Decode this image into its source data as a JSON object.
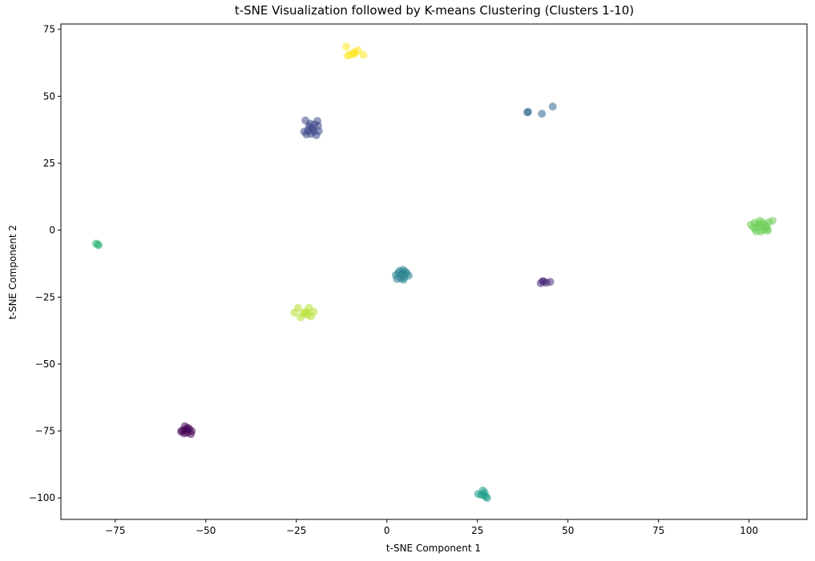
{
  "chart_data": {
    "type": "scatter",
    "title": "t-SNE Visualization followed by K-means Clustering (Clusters 1-10)",
    "xlabel": "t-SNE Component 1",
    "ylabel": "t-SNE Component 2",
    "xlim": [
      -90,
      116
    ],
    "ylim": [
      -108,
      77
    ],
    "xticks": [
      -75,
      -50,
      -25,
      0,
      25,
      50,
      75,
      100
    ],
    "yticks": [
      -100,
      -75,
      -50,
      -25,
      0,
      25,
      50,
      75
    ],
    "xtick_labels": [
      "−75",
      "−50",
      "−25",
      "0",
      "25",
      "50",
      "75",
      "100"
    ],
    "ytick_labels": [
      "−100",
      "−75",
      "−50",
      "−25",
      "0",
      "25",
      "50",
      "75"
    ],
    "grid": false,
    "marker_alpha": 0.55,
    "series": [
      {
        "color": "#440154",
        "points": [
          [
            -56.5,
            -74.8
          ],
          [
            -55.8,
            -73.2
          ],
          [
            -55.2,
            -75.6
          ],
          [
            -54.6,
            -74.2
          ],
          [
            -56.0,
            -75.9
          ],
          [
            -54.1,
            -76.1
          ],
          [
            -55.5,
            -74.5
          ],
          [
            -53.9,
            -75.0
          ],
          [
            -56.8,
            -75.2
          ],
          [
            -55.0,
            -73.8
          ]
        ]
      },
      {
        "color": "#482878",
        "points": [
          [
            42.5,
            -19.8
          ],
          [
            43.3,
            -19.2
          ],
          [
            44.0,
            -19.6
          ],
          [
            45.1,
            -19.3
          ],
          [
            43.0,
            -19.0
          ]
        ]
      },
      {
        "color": "#3e4989",
        "points": [
          [
            -22.5,
            41.0
          ],
          [
            -21.5,
            38.8
          ],
          [
            -20.5,
            37.6
          ],
          [
            -21.0,
            36.0
          ],
          [
            -22.2,
            35.8
          ],
          [
            -19.5,
            35.5
          ],
          [
            -18.8,
            37.0
          ],
          [
            -20.0,
            39.5
          ],
          [
            -19.2,
            40.8
          ],
          [
            -21.8,
            37.2
          ],
          [
            -20.8,
            38.2
          ],
          [
            -22.8,
            36.8
          ],
          [
            -19.0,
            39.0
          ],
          [
            -20.2,
            36.8
          ],
          [
            -21.2,
            39.8
          ]
        ]
      },
      {
        "color": "#31688e",
        "points": [
          [
            38.8,
            44.0
          ],
          [
            39.0,
            44.2
          ],
          [
            42.8,
            43.5
          ],
          [
            45.8,
            46.2
          ]
        ]
      },
      {
        "color": "#26828e",
        "points": [
          [
            2.5,
            -16.8
          ],
          [
            3.5,
            -15.2
          ],
          [
            4.5,
            -14.8
          ],
          [
            5.5,
            -16.0
          ],
          [
            6.0,
            -17.0
          ],
          [
            4.8,
            -17.5
          ],
          [
            3.8,
            -18.0
          ],
          [
            2.8,
            -18.2
          ],
          [
            4.2,
            -16.4
          ],
          [
            5.0,
            -15.5
          ],
          [
            3.2,
            -16.0
          ],
          [
            4.6,
            -18.5
          ]
        ]
      },
      {
        "color": "#1f9e89",
        "points": [
          [
            25.2,
            -98.5
          ],
          [
            26.0,
            -98.8
          ],
          [
            26.5,
            -97.2
          ],
          [
            27.0,
            -98.0
          ],
          [
            27.3,
            -99.5
          ],
          [
            27.7,
            -100.0
          ],
          [
            26.7,
            -99.0
          ]
        ]
      },
      {
        "color": "#35b779",
        "points": [
          [
            -80.3,
            -5.0
          ],
          [
            -79.8,
            -5.3
          ],
          [
            -79.6,
            -5.6
          ]
        ]
      },
      {
        "color": "#6ece58",
        "points": [
          [
            100.5,
            2.0
          ],
          [
            101.2,
            1.0
          ],
          [
            101.8,
            0.5
          ],
          [
            102.5,
            2.5
          ],
          [
            103.0,
            3.5
          ],
          [
            103.5,
            1.5
          ],
          [
            104.0,
            0.0
          ],
          [
            104.5,
            2.0
          ],
          [
            105.0,
            0.5
          ],
          [
            105.5,
            3.0
          ],
          [
            102.0,
            -0.5
          ],
          [
            103.2,
            -0.5
          ],
          [
            106.5,
            3.5
          ],
          [
            101.5,
            2.8
          ],
          [
            104.8,
            1.2
          ],
          [
            103.8,
            2.8
          ],
          [
            102.8,
            1.8
          ],
          [
            105.2,
            -0.2
          ]
        ]
      },
      {
        "color": "#b5de2b",
        "points": [
          [
            -25.5,
            -30.8
          ],
          [
            -24.5,
            -29.0
          ],
          [
            -23.8,
            -32.5
          ],
          [
            -22.5,
            -30.5
          ],
          [
            -21.5,
            -29.0
          ],
          [
            -21.0,
            -32.2
          ],
          [
            -20.2,
            -30.5
          ],
          [
            -23.0,
            -31.0
          ],
          [
            -22.0,
            -31.5
          ]
        ]
      },
      {
        "color": "#fde725",
        "points": [
          [
            -11.2,
            68.5
          ],
          [
            -10.8,
            65.2
          ],
          [
            -10.2,
            65.5
          ],
          [
            -9.5,
            66.0
          ],
          [
            -8.8,
            66.5
          ],
          [
            -8.0,
            67.2
          ],
          [
            -6.5,
            65.5
          ],
          [
            -9.0,
            65.8
          ]
        ]
      }
    ]
  }
}
